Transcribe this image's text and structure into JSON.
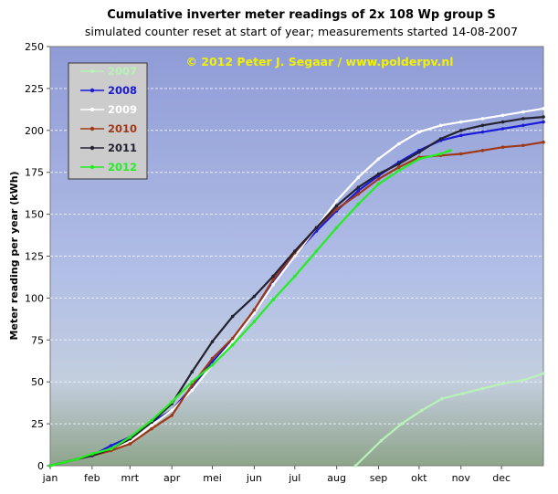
{
  "chart_data": {
    "type": "line",
    "title": "Cumulative inverter meter readings  of 2x 108 Wp group  S",
    "subtitle": "simulated  counter reset at start of year; measurements  started 14-08-2007",
    "watermark": "© 2012  Peter  J. Segaar  /  www.polderpv.nl",
    "ylabel": "Meter reading per year (kWh)",
    "xlabel": "",
    "xlim": [
      0,
      365
    ],
    "ylim": [
      0,
      250
    ],
    "yticks": [
      0,
      25,
      50,
      75,
      100,
      125,
      150,
      175,
      200,
      225,
      250
    ],
    "xticks": [
      {
        "label": "jan",
        "day": 0
      },
      {
        "label": "feb",
        "day": 31
      },
      {
        "label": "mrt",
        "day": 59
      },
      {
        "label": "apr",
        "day": 90
      },
      {
        "label": "mei",
        "day": 120
      },
      {
        "label": "jun",
        "day": 151
      },
      {
        "label": "jul",
        "day": 181
      },
      {
        "label": "aug",
        "day": 212
      },
      {
        "label": "sep",
        "day": 243
      },
      {
        "label": "okt",
        "day": 273
      },
      {
        "label": "nov",
        "day": 304
      },
      {
        "label": "dec",
        "day": 334
      }
    ],
    "grid": true,
    "legend_position": "top-left",
    "series": [
      {
        "name": "2007",
        "color": "#b8f2b8",
        "points": [
          [
            226,
            0
          ],
          [
            245,
            15
          ],
          [
            260,
            25
          ],
          [
            275,
            33
          ],
          [
            290,
            40
          ],
          [
            305,
            43
          ],
          [
            320,
            46
          ],
          [
            335,
            49
          ],
          [
            350,
            51
          ],
          [
            365,
            55
          ]
        ]
      },
      {
        "name": "2008",
        "color": "#1a1ad9",
        "points": [
          [
            0,
            0
          ],
          [
            10,
            2
          ],
          [
            20,
            4
          ],
          [
            31,
            6
          ],
          [
            45,
            12
          ],
          [
            59,
            17
          ],
          [
            75,
            26
          ],
          [
            90,
            33
          ],
          [
            105,
            47
          ],
          [
            120,
            62
          ],
          [
            135,
            75
          ],
          [
            151,
            93
          ],
          [
            165,
            110
          ],
          [
            181,
            126
          ],
          [
            197,
            140
          ],
          [
            212,
            152
          ],
          [
            228,
            164
          ],
          [
            243,
            173
          ],
          [
            258,
            181
          ],
          [
            273,
            188
          ],
          [
            289,
            194
          ],
          [
            304,
            197
          ],
          [
            320,
            199
          ],
          [
            335,
            201
          ],
          [
            350,
            203
          ],
          [
            365,
            205
          ]
        ]
      },
      {
        "name": "2009",
        "color": "#ffffff",
        "points": [
          [
            0,
            0
          ],
          [
            10,
            2
          ],
          [
            20,
            4
          ],
          [
            31,
            6
          ],
          [
            45,
            10
          ],
          [
            59,
            14
          ],
          [
            75,
            24
          ],
          [
            90,
            33
          ],
          [
            105,
            45
          ],
          [
            120,
            60
          ],
          [
            135,
            74
          ],
          [
            151,
            91
          ],
          [
            165,
            108
          ],
          [
            181,
            125
          ],
          [
            197,
            142
          ],
          [
            212,
            158
          ],
          [
            228,
            172
          ],
          [
            243,
            183
          ],
          [
            258,
            192
          ],
          [
            273,
            199
          ],
          [
            289,
            203
          ],
          [
            304,
            205
          ],
          [
            320,
            207
          ],
          [
            335,
            209
          ],
          [
            350,
            211
          ],
          [
            365,
            213
          ]
        ]
      },
      {
        "name": "2010",
        "color": "#a03818",
        "points": [
          [
            0,
            0
          ],
          [
            10,
            2
          ],
          [
            20,
            4
          ],
          [
            31,
            6
          ],
          [
            45,
            9
          ],
          [
            59,
            13
          ],
          [
            75,
            22
          ],
          [
            90,
            30
          ],
          [
            105,
            48
          ],
          [
            120,
            64
          ],
          [
            135,
            76
          ],
          [
            151,
            93
          ],
          [
            165,
            111
          ],
          [
            181,
            127
          ],
          [
            197,
            142
          ],
          [
            212,
            153
          ],
          [
            228,
            162
          ],
          [
            243,
            171
          ],
          [
            258,
            178
          ],
          [
            273,
            184
          ],
          [
            289,
            185
          ],
          [
            304,
            186
          ],
          [
            320,
            188
          ],
          [
            335,
            190
          ],
          [
            350,
            191
          ],
          [
            365,
            193
          ]
        ]
      },
      {
        "name": "2011",
        "color": "#222230",
        "points": [
          [
            0,
            0
          ],
          [
            10,
            2
          ],
          [
            20,
            4
          ],
          [
            31,
            6
          ],
          [
            45,
            10
          ],
          [
            59,
            16
          ],
          [
            75,
            26
          ],
          [
            90,
            37
          ],
          [
            105,
            56
          ],
          [
            120,
            74
          ],
          [
            135,
            89
          ],
          [
            151,
            101
          ],
          [
            165,
            113
          ],
          [
            181,
            128
          ],
          [
            197,
            142
          ],
          [
            212,
            155
          ],
          [
            228,
            166
          ],
          [
            243,
            174
          ],
          [
            258,
            180
          ],
          [
            273,
            187
          ],
          [
            289,
            195
          ],
          [
            304,
            200
          ],
          [
            320,
            203
          ],
          [
            335,
            205
          ],
          [
            350,
            207
          ],
          [
            365,
            208
          ]
        ]
      },
      {
        "name": "2012",
        "color": "#22ee22",
        "points": [
          [
            0,
            0
          ],
          [
            10,
            2
          ],
          [
            20,
            4
          ],
          [
            31,
            7
          ],
          [
            45,
            10
          ],
          [
            59,
            17
          ],
          [
            75,
            27
          ],
          [
            90,
            38
          ],
          [
            105,
            50
          ],
          [
            120,
            60
          ],
          [
            135,
            72
          ],
          [
            151,
            86
          ],
          [
            165,
            99
          ],
          [
            181,
            113
          ],
          [
            197,
            128
          ],
          [
            212,
            142
          ],
          [
            228,
            156
          ],
          [
            243,
            168
          ],
          [
            258,
            176
          ],
          [
            273,
            183
          ],
          [
            289,
            186
          ],
          [
            296,
            188
          ]
        ]
      }
    ]
  }
}
